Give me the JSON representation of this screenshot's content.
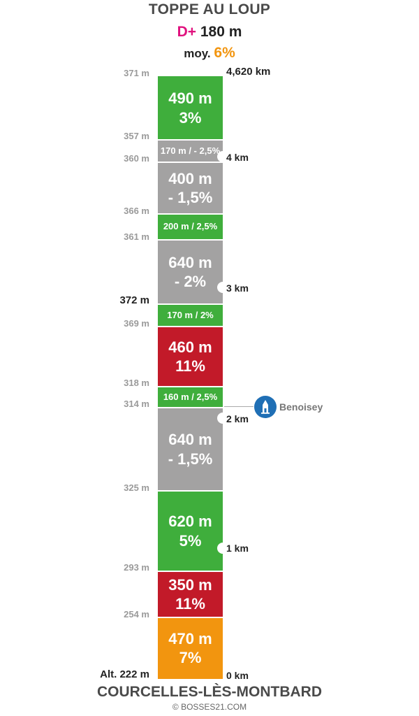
{
  "header": {
    "title": "TOPPE AU LOUP",
    "dplus_label": "D+",
    "dplus_value": "180 m",
    "avg_label": "moy.",
    "avg_value": "6%"
  },
  "footer": {
    "start_name": "COURCELLES-LÈS-MONTBARD",
    "copyright": "© BOSSES21.COM"
  },
  "colors": {
    "green": "#3fae3c",
    "gray": "#a3a2a2",
    "red": "#c21a29",
    "orange": "#f2950f",
    "dplus": "#e0127e",
    "poi": "#1f6fb5"
  },
  "segments": [
    {
      "length": "490 m",
      "grade": "3%",
      "color": "green"
    },
    {
      "label": "170 m / - 2,5%",
      "color": "gray"
    },
    {
      "length": "400 m",
      "grade": "- 1,5%",
      "color": "gray"
    },
    {
      "label": "200 m / 2,5%",
      "color": "green"
    },
    {
      "length": "640 m",
      "grade": "- 2%",
      "color": "gray"
    },
    {
      "label": "170 m / 2%",
      "color": "green"
    },
    {
      "length": "460 m",
      "grade": "11%",
      "color": "red"
    },
    {
      "label": "160 m / 2,5%",
      "color": "green"
    },
    {
      "length": "640 m",
      "grade": "- 1,5%",
      "color": "gray"
    },
    {
      "length": "620 m",
      "grade": "5%",
      "color": "green"
    },
    {
      "length": "350 m",
      "grade": "11%",
      "color": "red"
    },
    {
      "length": "470 m",
      "grade": "7%",
      "color": "orange"
    }
  ],
  "altitudes": [
    "371 m",
    "357 m",
    "360 m",
    "366 m",
    "361 m",
    "372 m",
    "369 m",
    "318 m",
    "314 m",
    "325 m",
    "293 m",
    "254 m",
    "Alt. 222 m"
  ],
  "distances": [
    "4,620 km",
    "4 km",
    "3 km",
    "2 km",
    "1 km",
    "0 km"
  ],
  "poi": {
    "name": "Benoisey",
    "icon": "church-icon"
  }
}
